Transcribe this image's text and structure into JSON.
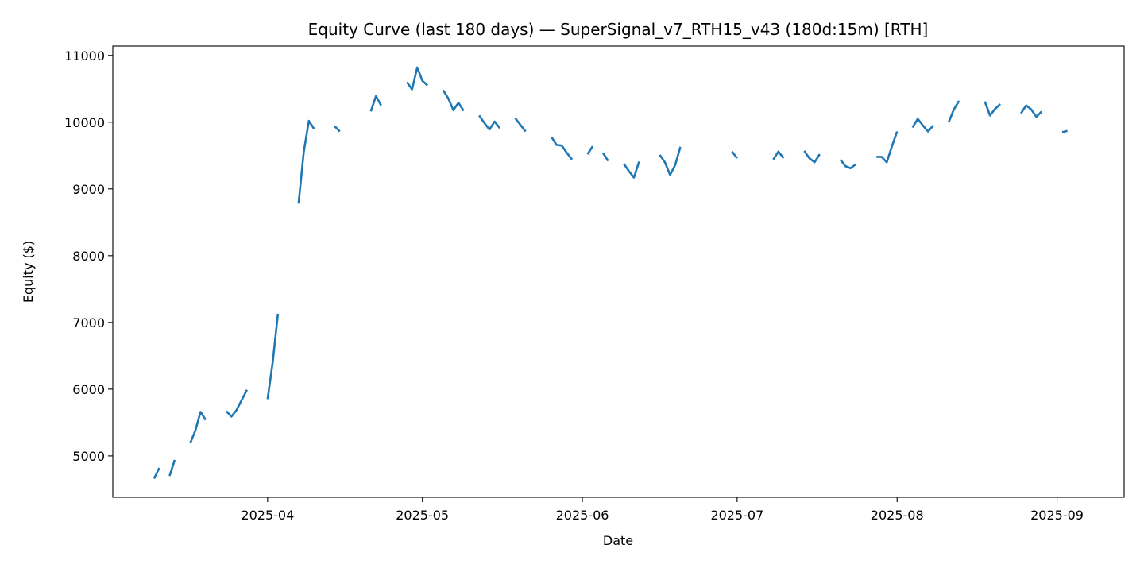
{
  "chart_data": {
    "type": "line",
    "title": "Equity Curve (last 180 days) — SuperSignal_v7_RTH15_v43 (180d:15m) [RTH]",
    "xlabel": "Date",
    "ylabel": "Equity ($)",
    "x_axis_type": "date",
    "xlim": [
      "2025-03-02",
      "2025-09-14"
    ],
    "ylim": [
      4380,
      11140
    ],
    "x_ticks": [
      "2025-04-01",
      "2025-05-01",
      "2025-06-01",
      "2025-07-01",
      "2025-08-01",
      "2025-09-01"
    ],
    "x_tick_labels": [
      "2025-04",
      "2025-05",
      "2025-06",
      "2025-07",
      "2025-08",
      "2025-09"
    ],
    "y_ticks": [
      5000,
      6000,
      7000,
      8000,
      9000,
      10000,
      11000
    ],
    "y_tick_labels": [
      "5000",
      "6000",
      "7000",
      "8000",
      "9000",
      "10000",
      "11000"
    ],
    "grid": false,
    "legend": "none",
    "colors": {
      "series": "#1f77b4",
      "axes": "#000000",
      "background": "#ffffff"
    },
    "segments": [
      [
        [
          "2025-03-10",
          4660
        ],
        [
          "2025-03-11",
          4820
        ]
      ],
      [
        [
          "2025-03-13",
          4700
        ],
        [
          "2025-03-14",
          4940
        ]
      ],
      [
        [
          "2025-03-17",
          5190
        ],
        [
          "2025-03-18",
          5380
        ],
        [
          "2025-03-19",
          5660
        ],
        [
          "2025-03-20",
          5540
        ]
      ],
      [
        [
          "2025-03-24",
          5670
        ],
        [
          "2025-03-25",
          5590
        ],
        [
          "2025-03-26",
          5690
        ],
        [
          "2025-03-27",
          5840
        ],
        [
          "2025-03-28",
          5990
        ]
      ],
      [
        [
          "2025-04-01",
          5850
        ],
        [
          "2025-04-02",
          6410
        ],
        [
          "2025-04-03",
          7130
        ]
      ],
      [
        [
          "2025-04-07",
          8780
        ],
        [
          "2025-04-08",
          9550
        ],
        [
          "2025-04-09",
          10020
        ],
        [
          "2025-04-10",
          9900
        ]
      ],
      [
        [
          "2025-04-14",
          9940
        ],
        [
          "2025-04-15",
          9860
        ]
      ],
      [
        [
          "2025-04-21",
          10160
        ],
        [
          "2025-04-22",
          10390
        ],
        [
          "2025-04-23",
          10250
        ]
      ],
      [
        [
          "2025-04-28",
          10600
        ],
        [
          "2025-04-29",
          10490
        ],
        [
          "2025-04-30",
          10820
        ],
        [
          "2025-05-01",
          10620
        ],
        [
          "2025-05-02",
          10550
        ]
      ],
      [
        [
          "2025-05-05",
          10480
        ],
        [
          "2025-05-06",
          10360
        ],
        [
          "2025-05-07",
          10180
        ],
        [
          "2025-05-08",
          10290
        ],
        [
          "2025-05-09",
          10170
        ]
      ],
      [
        [
          "2025-05-12",
          10100
        ],
        [
          "2025-05-13",
          9990
        ],
        [
          "2025-05-14",
          9890
        ],
        [
          "2025-05-15",
          10010
        ],
        [
          "2025-05-16",
          9910
        ]
      ],
      [
        [
          "2025-05-19",
          10060
        ],
        [
          "2025-05-20",
          9960
        ],
        [
          "2025-05-21",
          9860
        ]
      ],
      [
        [
          "2025-05-26",
          9780
        ],
        [
          "2025-05-27",
          9660
        ],
        [
          "2025-05-28",
          9650
        ],
        [
          "2025-05-29",
          9540
        ],
        [
          "2025-05-30",
          9440
        ]
      ],
      [
        [
          "2025-06-02",
          9520
        ],
        [
          "2025-06-03",
          9640
        ]
      ],
      [
        [
          "2025-06-05",
          9540
        ],
        [
          "2025-06-06",
          9420
        ]
      ],
      [
        [
          "2025-06-09",
          9380
        ],
        [
          "2025-06-10",
          9270
        ],
        [
          "2025-06-11",
          9170
        ],
        [
          "2025-06-12",
          9410
        ]
      ],
      [
        [
          "2025-06-16",
          9510
        ],
        [
          "2025-06-17",
          9400
        ],
        [
          "2025-06-18",
          9210
        ],
        [
          "2025-06-19",
          9360
        ],
        [
          "2025-06-20",
          9630
        ]
      ],
      [
        [
          "2025-06-30",
          9560
        ],
        [
          "2025-07-01",
          9460
        ]
      ],
      [
        [
          "2025-07-08",
          9440
        ],
        [
          "2025-07-09",
          9560
        ],
        [
          "2025-07-10",
          9460
        ]
      ],
      [
        [
          "2025-07-14",
          9570
        ],
        [
          "2025-07-15",
          9460
        ],
        [
          "2025-07-16",
          9400
        ],
        [
          "2025-07-17",
          9520
        ]
      ],
      [
        [
          "2025-07-21",
          9440
        ],
        [
          "2025-07-22",
          9340
        ],
        [
          "2025-07-23",
          9310
        ],
        [
          "2025-07-24",
          9370
        ]
      ],
      [
        [
          "2025-07-28",
          9480
        ],
        [
          "2025-07-29",
          9480
        ],
        [
          "2025-07-30",
          9400
        ],
        [
          "2025-07-31",
          9640
        ],
        [
          "2025-08-01",
          9860
        ]
      ],
      [
        [
          "2025-08-04",
          9920
        ],
        [
          "2025-08-05",
          10050
        ],
        [
          "2025-08-06",
          9950
        ],
        [
          "2025-08-07",
          9860
        ],
        [
          "2025-08-08",
          9950
        ]
      ],
      [
        [
          "2025-08-11",
          10000
        ],
        [
          "2025-08-12",
          10190
        ],
        [
          "2025-08-13",
          10320
        ]
      ],
      [
        [
          "2025-08-18",
          10310
        ],
        [
          "2025-08-19",
          10100
        ],
        [
          "2025-08-20",
          10200
        ],
        [
          "2025-08-21",
          10270
        ]
      ],
      [
        [
          "2025-08-25",
          10130
        ],
        [
          "2025-08-26",
          10250
        ],
        [
          "2025-08-27",
          10190
        ],
        [
          "2025-08-28",
          10080
        ],
        [
          "2025-08-29",
          10160
        ]
      ],
      [
        [
          "2025-09-02",
          9850
        ],
        [
          "2025-09-03",
          9870
        ]
      ]
    ]
  }
}
